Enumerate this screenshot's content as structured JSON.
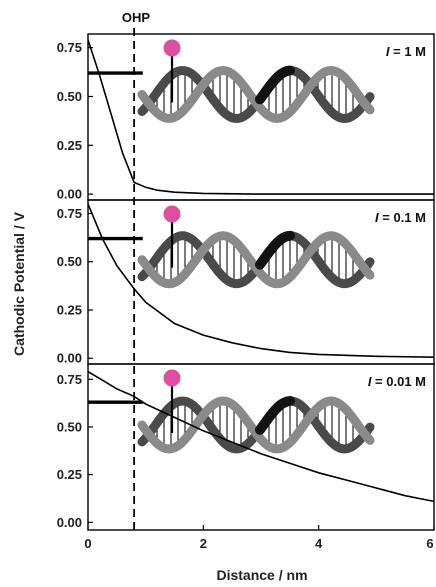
{
  "chart_data": {
    "type": "line",
    "xlabel": "Distance / nm",
    "ylabel": "Cathodic Potential / V",
    "xlim": [
      0,
      6
    ],
    "x_ticks": [
      "0",
      "2",
      "4",
      "6"
    ],
    "y_ticks": [
      "0.00",
      "0.25",
      "0.50",
      "0.75"
    ],
    "ohp_label": "OHP",
    "ohp_x": 0.8,
    "panels": [
      {
        "label_italic": "I",
        "label_rest": " = 1 M",
        "ylim": [
          -0.03,
          0.82
        ],
        "flat_level": 0.62,
        "flat_end_x": 0.95,
        "decay_points": [
          [
            0,
            0.79
          ],
          [
            0.2,
            0.61
          ],
          [
            0.4,
            0.41
          ],
          [
            0.6,
            0.21
          ],
          [
            0.8,
            0.06
          ],
          [
            1.0,
            0.035
          ],
          [
            1.2,
            0.02
          ],
          [
            1.5,
            0.01
          ],
          [
            2.0,
            0.004
          ],
          [
            3.0,
            0.0
          ],
          [
            6.0,
            0.0
          ]
        ]
      },
      {
        "label_italic": "I",
        "label_rest": " = 0.1 M",
        "ylim": [
          -0.03,
          0.82
        ],
        "flat_level": 0.62,
        "flat_end_x": 0.95,
        "decay_points": [
          [
            0,
            0.8
          ],
          [
            0.25,
            0.62
          ],
          [
            0.5,
            0.48
          ],
          [
            0.8,
            0.36
          ],
          [
            1.0,
            0.29
          ],
          [
            1.5,
            0.18
          ],
          [
            2.0,
            0.12
          ],
          [
            2.5,
            0.08
          ],
          [
            3.0,
            0.05
          ],
          [
            3.5,
            0.03
          ],
          [
            4.0,
            0.02
          ],
          [
            5.0,
            0.01
          ],
          [
            6.0,
            0.005
          ]
        ]
      },
      {
        "label_italic": "I",
        "label_rest": " = 0.01 M",
        "ylim": [
          -0.04,
          0.83
        ],
        "flat_level": 0.63,
        "flat_end_x": 0.95,
        "decay_points": [
          [
            0,
            0.79
          ],
          [
            0.5,
            0.7
          ],
          [
            0.8,
            0.66
          ],
          [
            1.0,
            0.62
          ],
          [
            1.5,
            0.55
          ],
          [
            2.0,
            0.48
          ],
          [
            2.5,
            0.42
          ],
          [
            3.0,
            0.36
          ],
          [
            3.5,
            0.31
          ],
          [
            4.0,
            0.26
          ],
          [
            4.5,
            0.22
          ],
          [
            5.0,
            0.18
          ],
          [
            5.5,
            0.14
          ],
          [
            6.0,
            0.11
          ]
        ]
      }
    ]
  },
  "colors": {
    "probe_head": "#de4f9f",
    "strand_light": "#8a8a8a",
    "strand_dark": "#4a4a4a",
    "strand_black": "#121212",
    "line": "#000000"
  }
}
